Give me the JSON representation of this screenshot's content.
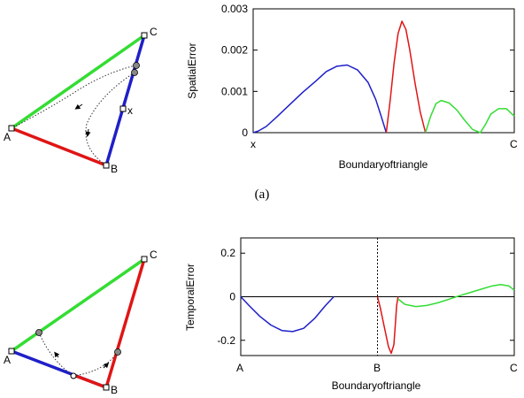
{
  "caption": "(a)",
  "colors": {
    "segment_1": "#1f1fc8",
    "segment_2": "#e01515",
    "segment_3": "#33dd33",
    "vertex_dot": "#888888"
  },
  "chart_data": [
    {
      "type": "line",
      "xlabel": "Boundaryoftriangle",
      "ylabel": "SpatialError",
      "ylim": [
        0,
        0.003
      ],
      "yticks": [
        "0.003",
        "0.002",
        "0.001",
        "0"
      ],
      "xtick_labels": [
        "x",
        "C"
      ],
      "grid": false,
      "series": [
        {
          "color": "#1f1fc8",
          "x": [
            0,
            0.02,
            0.05,
            0.09,
            0.14,
            0.19,
            0.24,
            0.28,
            0.32,
            0.36,
            0.4,
            0.44,
            0.47,
            0.49,
            0.51
          ],
          "y": [
            0,
            4e-05,
            0.00015,
            0.00038,
            0.00068,
            0.00098,
            0.00125,
            0.00148,
            0.00161,
            0.00164,
            0.00152,
            0.00122,
            0.0008,
            0.0004,
            0
          ]
        },
        {
          "color": "#e01515",
          "x": [
            0.51,
            0.525,
            0.54,
            0.555,
            0.57,
            0.585,
            0.6,
            0.62,
            0.64,
            0.66
          ],
          "y": [
            0,
            0.0008,
            0.0017,
            0.0024,
            0.0027,
            0.0025,
            0.002,
            0.0012,
            0.0005,
            0
          ]
        },
        {
          "color": "#33dd33",
          "x": [
            0.66,
            0.68,
            0.7,
            0.72,
            0.75,
            0.78,
            0.81,
            0.84,
            0.87,
            0.89,
            0.91,
            0.94,
            0.97,
            1.0
          ],
          "y": [
            0,
            0.0004,
            0.0007,
            0.00078,
            0.00072,
            0.00055,
            0.0003,
            8e-05,
            0,
            0.0002,
            0.00045,
            0.00058,
            0.00058,
            0.0004
          ]
        }
      ],
      "vline_at": null
    },
    {
      "type": "line",
      "xlabel": "Boundaryoftriangle",
      "ylabel": "TemporalError",
      "ylim": [
        -0.27,
        0.27
      ],
      "yticks": [
        "0.2",
        "0",
        "-0.2"
      ],
      "xtick_labels": [
        "A",
        "B",
        "C"
      ],
      "grid": false,
      "zero_line": true,
      "series": [
        {
          "color": "#1f1fc8",
          "x": [
            0,
            0.03,
            0.07,
            0.11,
            0.15,
            0.19,
            0.23,
            0.27,
            0.31,
            0.34
          ],
          "y": [
            0,
            -0.04,
            -0.09,
            -0.13,
            -0.155,
            -0.16,
            -0.145,
            -0.1,
            -0.04,
            0
          ]
        },
        {
          "color": "#e01515",
          "x": [
            0.5,
            0.51,
            0.52,
            0.53,
            0.54,
            0.55,
            0.56,
            0.565,
            0.57,
            0.575
          ],
          "y": [
            0,
            -0.05,
            -0.11,
            -0.17,
            -0.23,
            -0.26,
            -0.22,
            -0.13,
            -0.04,
            0
          ]
        },
        {
          "color": "#33dd33",
          "x": [
            0.575,
            0.6,
            0.64,
            0.68,
            0.72,
            0.76,
            0.8,
            0.84,
            0.88,
            0.92,
            0.95,
            0.98,
            1.0
          ],
          "y": [
            -0.01,
            -0.035,
            -0.045,
            -0.04,
            -0.028,
            -0.012,
            0.005,
            0.02,
            0.035,
            0.05,
            0.056,
            0.05,
            0.03
          ]
        }
      ],
      "vline_at": 0.5
    }
  ],
  "diagrams": [
    {
      "vertex_labels": {
        "A": "A",
        "B": "B",
        "C": "C",
        "point": "x"
      },
      "edge_colors": {
        "AC": "#33dd33",
        "AB": "#e01515",
        "BC": "#1f1fc8"
      }
    },
    {
      "vertex_labels": {
        "A": "A",
        "B": "B",
        "C": "C"
      },
      "edge_colors": {
        "AC": "#33dd33",
        "AB": "#1f1fc8",
        "BC": "#e01515"
      }
    }
  ]
}
